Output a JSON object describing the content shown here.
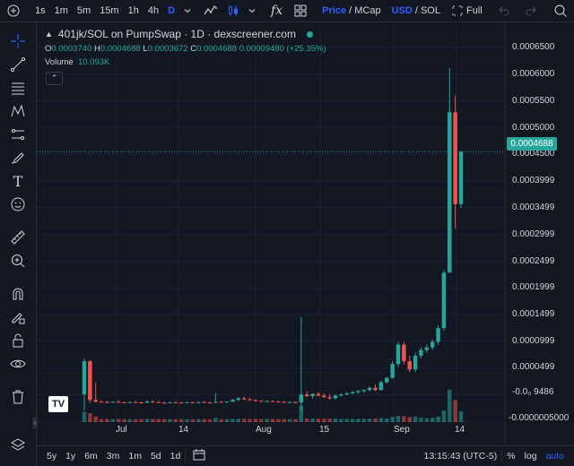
{
  "toolbar": {
    "timeframes": [
      "1s",
      "1m",
      "5m",
      "15m",
      "1h",
      "4h",
      "D"
    ],
    "active_timeframe": "D",
    "price_label": "Price",
    "mcap_label": "MCap",
    "usd_label": "USD",
    "sol_label": "SOL",
    "full_label": "Full"
  },
  "legend": {
    "title": "401jk/SOL on PumpSwap · 1D · dexscreener.com",
    "o_label": "O",
    "o_value": "0.0003740",
    "h_label": "H",
    "h_value": "0.0004688",
    "l_label": "L",
    "l_value": "0.0003672",
    "c_label": "C",
    "c_value": "0.0004688",
    "change": "0.00009480 (+25.35%)",
    "volume_label": "Volume",
    "volume_value": "10.093K"
  },
  "current_price_tag": "0.0004688",
  "y_axis_labels": [
    "0.0006500",
    "0.0006000",
    "0.0005500",
    "0.0005000",
    "0.0004500",
    "0.0003999",
    "0.0003499",
    "0.0002999",
    "0.0002499",
    "0.0001999",
    "0.0001499",
    "0.0000999",
    "0.0000499",
    "-0.0₀ 9486",
    "-0.0000005000"
  ],
  "x_axis_labels": [
    "Jul",
    "14",
    "Aug",
    "15",
    "Sep",
    "14"
  ],
  "bottom": {
    "ranges": [
      "5y",
      "1y",
      "6m",
      "3m",
      "1m",
      "5d",
      "1d"
    ],
    "time": "13:15:43 (UTC-5)",
    "percent_label": "%",
    "log_label": "log",
    "auto_label": "auto"
  },
  "colors": {
    "up": "#26a69a",
    "down": "#ef5350",
    "accent": "#2962ff",
    "bg": "#131722"
  },
  "chart_data": {
    "type": "candlestick",
    "title": "401jk/SOL on PumpSwap · 1D · dexscreener.com",
    "ylim": [
      -2e-05,
      0.00067
    ],
    "candles": [
      {
        "o": 3e-05,
        "h": 9.5e-05,
        "l": 1e-06,
        "c": 9e-05
      },
      {
        "o": 9e-05,
        "h": 9.2e-05,
        "l": 1.5e-05,
        "c": 2e-05
      },
      {
        "o": 2e-05,
        "h": 5.2e-05,
        "l": 1.5e-05,
        "c": 1.7e-05
      },
      {
        "o": 1.7e-05,
        "h": 1.9e-05,
        "l": 1.5e-05,
        "c": 1.65e-05
      },
      {
        "o": 1.65e-05,
        "h": 1.8e-05,
        "l": 1.4e-05,
        "c": 1.6e-05
      },
      {
        "o": 1.6e-05,
        "h": 1.75e-05,
        "l": 1.45e-05,
        "c": 1.68e-05
      },
      {
        "o": 1.68e-05,
        "h": 1.9e-05,
        "l": 1.5e-05,
        "c": 1.58e-05
      },
      {
        "o": 1.58e-05,
        "h": 1.7e-05,
        "l": 1.45e-05,
        "c": 1.5e-05
      },
      {
        "o": 1.5e-05,
        "h": 1.7e-05,
        "l": 1.4e-05,
        "c": 1.62e-05
      },
      {
        "o": 1.62e-05,
        "h": 1.8e-05,
        "l": 1.5e-05,
        "c": 1.55e-05
      },
      {
        "o": 1.55e-05,
        "h": 1.7e-05,
        "l": 1.4e-05,
        "c": 1.5e-05
      },
      {
        "o": 1.5e-05,
        "h": 1.9e-05,
        "l": 1.4e-05,
        "c": 1.72e-05
      },
      {
        "o": 1.72e-05,
        "h": 1.9e-05,
        "l": 1.5e-05,
        "c": 1.6e-05
      },
      {
        "o": 1.6e-05,
        "h": 1.8e-05,
        "l": 1.45e-05,
        "c": 1.5e-05
      },
      {
        "o": 1.5e-05,
        "h": 1.7e-05,
        "l": 1.4e-05,
        "c": 1.48e-05
      },
      {
        "o": 1.48e-05,
        "h": 1.65e-05,
        "l": 1.4e-05,
        "c": 1.58e-05
      },
      {
        "o": 1.58e-05,
        "h": 1.75e-05,
        "l": 1.45e-05,
        "c": 1.52e-05
      },
      {
        "o": 1.52e-05,
        "h": 1.7e-05,
        "l": 1.4e-05,
        "c": 1.5e-05
      },
      {
        "o": 1.5e-05,
        "h": 1.65e-05,
        "l": 1.4e-05,
        "c": 1.58e-05
      },
      {
        "o": 1.58e-05,
        "h": 1.7e-05,
        "l": 1.45e-05,
        "c": 1.5e-05
      },
      {
        "o": 1.5e-05,
        "h": 1.75e-05,
        "l": 1.4e-05,
        "c": 1.6e-05
      },
      {
        "o": 1.6e-05,
        "h": 1.8e-05,
        "l": 1.48e-05,
        "c": 1.55e-05
      },
      {
        "o": 1.55e-05,
        "h": 1.7e-05,
        "l": 1.45e-05,
        "c": 1.5e-05
      },
      {
        "o": 1.5e-05,
        "h": 3.3e-05,
        "l": 1.4e-05,
        "c": 1.65e-05
      },
      {
        "o": 1.65e-05,
        "h": 1.85e-05,
        "l": 1.5e-05,
        "c": 1.6e-05
      },
      {
        "o": 1.6e-05,
        "h": 1.8e-05,
        "l": 1.45e-05,
        "c": 1.7e-05
      },
      {
        "o": 1.7e-05,
        "h": 2.2e-05,
        "l": 1.6e-05,
        "c": 2e-05
      },
      {
        "o": 2e-05,
        "h": 2.5e-05,
        "l": 1.8e-05,
        "c": 2.3e-05
      },
      {
        "o": 2.3e-05,
        "h": 2.6e-05,
        "l": 1.9e-05,
        "c": 2.1e-05
      },
      {
        "o": 2.1e-05,
        "h": 2.4e-05,
        "l": 1.9e-05,
        "c": 1.95e-05
      },
      {
        "o": 1.95e-05,
        "h": 2.1e-05,
        "l": 1.7e-05,
        "c": 1.85e-05
      },
      {
        "o": 1.85e-05,
        "h": 2e-05,
        "l": 1.65e-05,
        "c": 1.75e-05
      },
      {
        "o": 1.75e-05,
        "h": 1.95e-05,
        "l": 1.6e-05,
        "c": 1.8e-05
      },
      {
        "o": 1.8e-05,
        "h": 1.95e-05,
        "l": 1.6e-05,
        "c": 1.7e-05
      },
      {
        "o": 1.7e-05,
        "h": 1.85e-05,
        "l": 1.6e-05,
        "c": 1.65e-05
      },
      {
        "o": 1.65e-05,
        "h": 1.8e-05,
        "l": 1.55e-05,
        "c": 1.6e-05
      },
      {
        "o": 1.6e-05,
        "h": 1.75e-05,
        "l": 1.5e-05,
        "c": 1.62e-05
      },
      {
        "o": 1.62e-05,
        "h": 1.75e-05,
        "l": 1.5e-05,
        "c": 1.55e-05
      },
      {
        "o": 1.55e-05,
        "h": 0.00017,
        "l": 1e-06,
        "c": 3e-05
      },
      {
        "o": 3e-05,
        "h": 3.6e-05,
        "l": 2.5e-05,
        "c": 2.7e-05
      },
      {
        "o": 2.7e-05,
        "h": 3.2e-05,
        "l": 2.3e-05,
        "c": 3.1e-05
      },
      {
        "o": 3.1e-05,
        "h": 3.4e-05,
        "l": 2.6e-05,
        "c": 2.8e-05
      },
      {
        "o": 2.8e-05,
        "h": 3.2e-05,
        "l": 2.4e-05,
        "c": 2.5e-05
      },
      {
        "o": 2.5e-05,
        "h": 3e-05,
        "l": 2e-05,
        "c": 2.3e-05
      },
      {
        "o": 2.3e-05,
        "h": 3e-05,
        "l": 2.1e-05,
        "c": 2.8e-05
      },
      {
        "o": 2.8e-05,
        "h": 3.2e-05,
        "l": 2.6e-05,
        "c": 3e-05
      },
      {
        "o": 3e-05,
        "h": 3.4e-05,
        "l": 2.8e-05,
        "c": 3.2e-05
      },
      {
        "o": 3.2e-05,
        "h": 3.6e-05,
        "l": 3e-05,
        "c": 3.4e-05
      },
      {
        "o": 3.4e-05,
        "h": 3.8e-05,
        "l": 3.1e-05,
        "c": 3.6e-05
      },
      {
        "o": 3.6e-05,
        "h": 4e-05,
        "l": 3.3e-05,
        "c": 3.8e-05
      },
      {
        "o": 3.8e-05,
        "h": 4.5e-05,
        "l": 3.5e-05,
        "c": 4.2e-05
      },
      {
        "o": 4.2e-05,
        "h": 4.8e-05,
        "l": 3.6e-05,
        "c": 3.8e-05
      },
      {
        "o": 3.8e-05,
        "h": 5.5e-05,
        "l": 3.7e-05,
        "c": 5.2e-05
      },
      {
        "o": 5.2e-05,
        "h": 6.2e-05,
        "l": 5e-05,
        "c": 6e-05
      },
      {
        "o": 6e-05,
        "h": 9e-05,
        "l": 5.8e-05,
        "c": 8.5e-05
      },
      {
        "o": 8.5e-05,
        "h": 0.000125,
        "l": 8e-05,
        "c": 0.00012
      },
      {
        "o": 0.00012,
        "h": 0.000125,
        "l": 8.5e-05,
        "c": 9e-05
      },
      {
        "o": 9e-05,
        "h": 0.0001,
        "l": 7e-05,
        "c": 7.5e-05
      },
      {
        "o": 7.5e-05,
        "h": 0.000105,
        "l": 7e-05,
        "c": 0.0001
      },
      {
        "o": 0.0001,
        "h": 0.000115,
        "l": 9.5e-05,
        "c": 0.00011
      },
      {
        "o": 0.00011,
        "h": 0.00012,
        "l": 0.000105,
        "c": 0.000115
      },
      {
        "o": 0.000115,
        "h": 0.00013,
        "l": 0.00011,
        "c": 0.000125
      },
      {
        "o": 0.000125,
        "h": 0.000155,
        "l": 0.00012,
        "c": 0.00015
      },
      {
        "o": 0.00015,
        "h": 0.000255,
        "l": 0.000145,
        "c": 0.00025
      },
      {
        "o": 0.00025,
        "h": 0.00062,
        "l": 0.00025,
        "c": 0.00054
      },
      {
        "o": 0.00054,
        "h": 0.00057,
        "l": 0.00033,
        "c": 0.000374
      },
      {
        "o": 0.000374,
        "h": 0.0004688,
        "l": 0.0003672,
        "c": 0.0004688
      }
    ]
  }
}
